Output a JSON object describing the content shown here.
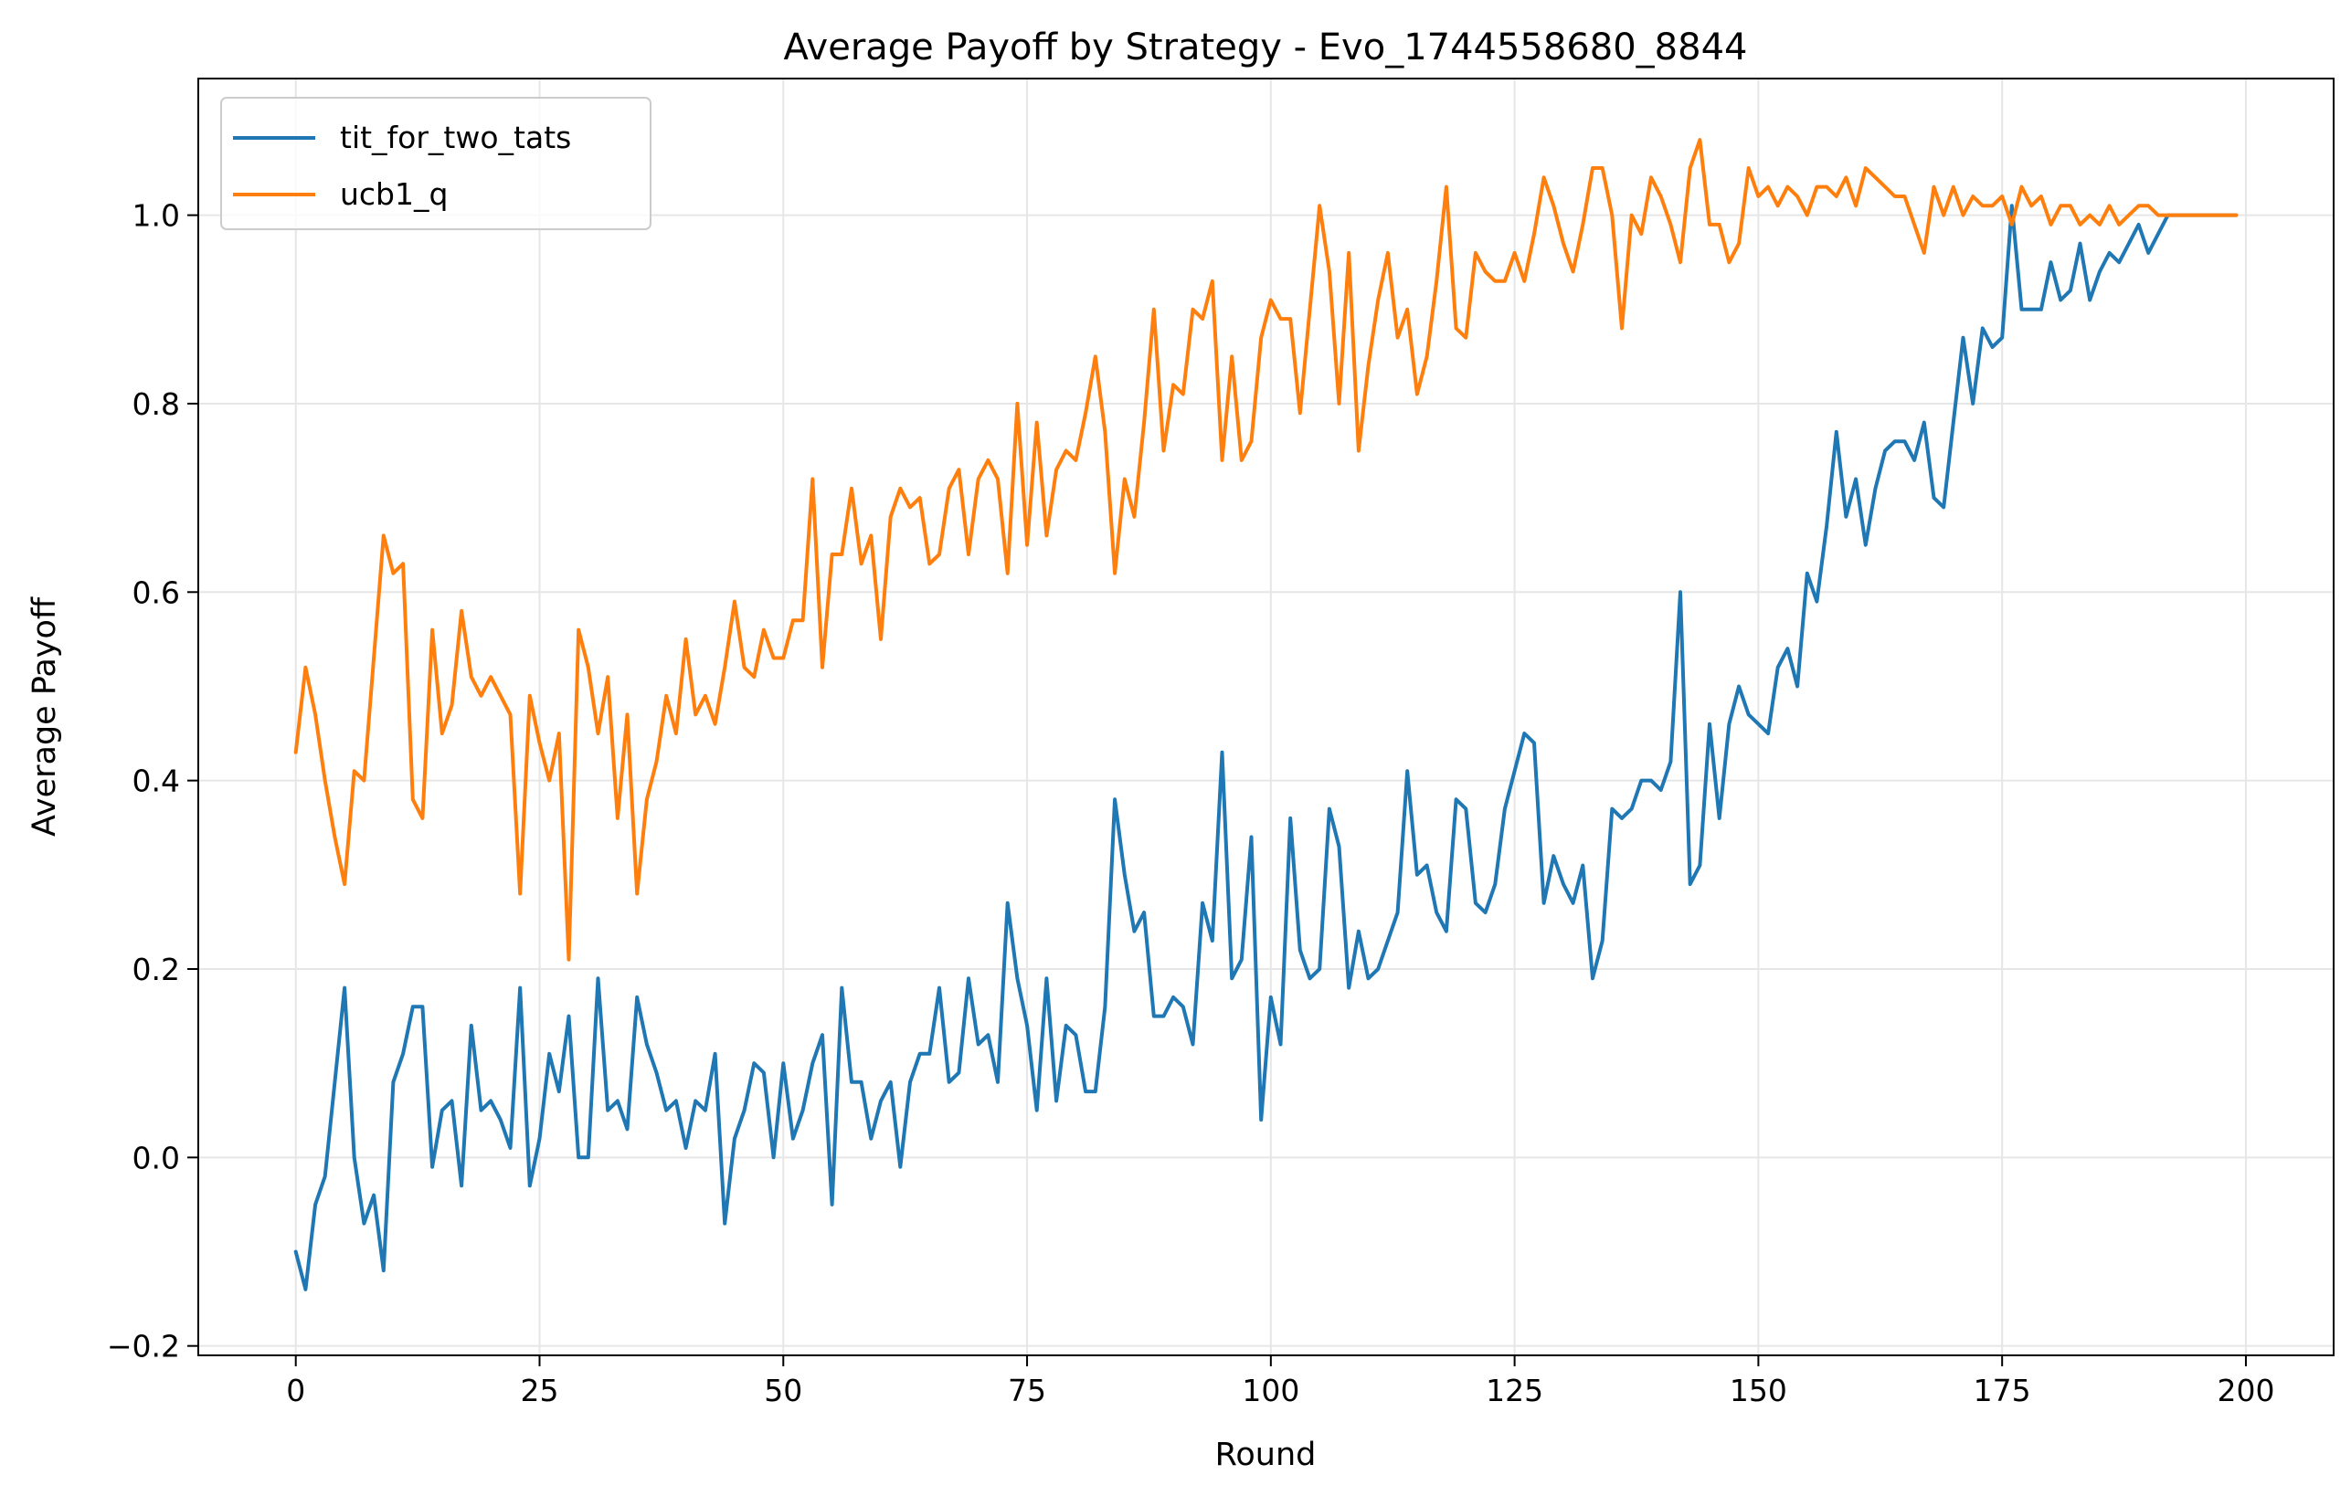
{
  "chart_data": {
    "type": "line",
    "title": "Average Payoff by Strategy - Evo_1744558680_8844",
    "xlabel": "Round",
    "ylabel": "Average Payoff",
    "xlim": [
      -10,
      209
    ],
    "ylim": [
      -0.21,
      1.145
    ],
    "xticks": [
      0,
      25,
      50,
      75,
      100,
      125,
      150,
      175,
      200
    ],
    "xtick_labels": [
      "0",
      "25",
      "50",
      "75",
      "100",
      "125",
      "150",
      "175",
      "200"
    ],
    "yticks": [
      -0.2,
      0.0,
      0.2,
      0.4,
      0.6,
      0.8,
      1.0
    ],
    "ytick_labels": [
      "−0.2",
      "0.0",
      "0.2",
      "0.4",
      "0.6",
      "0.8",
      "1.0"
    ],
    "grid": true,
    "legend_position": "upper-left",
    "series": [
      {
        "name": "tit_for_two_tats",
        "color": "#1f77b4",
        "values": [
          -0.1,
          -0.14,
          -0.05,
          -0.02,
          0.08,
          0.18,
          0.0,
          -0.07,
          -0.04,
          -0.12,
          0.08,
          0.11,
          0.16,
          0.16,
          -0.01,
          0.05,
          0.06,
          -0.03,
          0.14,
          0.05,
          0.06,
          0.04,
          0.01,
          0.18,
          -0.03,
          0.02,
          0.11,
          0.07,
          0.15,
          0.0,
          0.0,
          0.19,
          0.05,
          0.06,
          0.03,
          0.17,
          0.12,
          0.09,
          0.05,
          0.06,
          0.01,
          0.06,
          0.05,
          0.11,
          -0.07,
          0.02,
          0.05,
          0.1,
          0.09,
          0.0,
          0.1,
          0.02,
          0.05,
          0.1,
          0.13,
          -0.05,
          0.18,
          0.08,
          0.08,
          0.02,
          0.06,
          0.08,
          -0.01,
          0.08,
          0.11,
          0.11,
          0.18,
          0.08,
          0.09,
          0.19,
          0.12,
          0.13,
          0.08,
          0.27,
          0.19,
          0.14,
          0.05,
          0.19,
          0.06,
          0.14,
          0.13,
          0.07,
          0.07,
          0.16,
          0.38,
          0.3,
          0.24,
          0.26,
          0.15,
          0.15,
          0.17,
          0.16,
          0.12,
          0.27,
          0.23,
          0.43,
          0.19,
          0.21,
          0.34,
          0.04,
          0.17,
          0.12,
          0.36,
          0.22,
          0.19,
          0.2,
          0.37,
          0.33,
          0.18,
          0.24,
          0.19,
          0.2,
          0.23,
          0.26,
          0.41,
          0.3,
          0.31,
          0.26,
          0.24,
          0.38,
          0.37,
          0.27,
          0.26,
          0.29,
          0.37,
          0.41,
          0.45,
          0.44,
          0.27,
          0.32,
          0.29,
          0.27,
          0.31,
          0.19,
          0.23,
          0.37,
          0.36,
          0.37,
          0.4,
          0.4,
          0.39,
          0.42,
          0.6,
          0.29,
          0.31,
          0.46,
          0.36,
          0.46,
          0.5,
          0.47,
          0.46,
          0.45,
          0.52,
          0.54,
          0.5,
          0.62,
          0.59,
          0.67,
          0.77,
          0.68,
          0.72,
          0.65,
          0.71,
          0.75,
          0.76,
          0.76,
          0.74,
          0.78,
          0.7,
          0.69,
          0.78,
          0.87,
          0.8,
          0.88,
          0.86,
          0.87,
          1.01,
          0.9,
          0.9,
          0.9,
          0.95,
          0.91,
          0.92,
          0.97,
          0.91,
          0.94,
          0.96,
          0.95,
          0.97,
          0.99,
          0.96,
          0.98,
          1.0,
          1.0,
          1.0,
          1.0,
          1.0,
          1.0,
          1.0,
          1.0
        ]
      },
      {
        "name": "ucb1_q",
        "color": "#ff7f0e",
        "values": [
          0.43,
          0.52,
          0.47,
          0.4,
          0.34,
          0.29,
          0.41,
          0.4,
          0.53,
          0.66,
          0.62,
          0.63,
          0.38,
          0.36,
          0.56,
          0.45,
          0.48,
          0.58,
          0.51,
          0.49,
          0.51,
          0.49,
          0.47,
          0.28,
          0.49,
          0.44,
          0.4,
          0.45,
          0.21,
          0.56,
          0.52,
          0.45,
          0.51,
          0.36,
          0.47,
          0.28,
          0.38,
          0.42,
          0.49,
          0.45,
          0.55,
          0.47,
          0.49,
          0.46,
          0.52,
          0.59,
          0.52,
          0.51,
          0.56,
          0.53,
          0.53,
          0.57,
          0.57,
          0.72,
          0.52,
          0.64,
          0.64,
          0.71,
          0.63,
          0.66,
          0.55,
          0.68,
          0.71,
          0.69,
          0.7,
          0.63,
          0.64,
          0.71,
          0.73,
          0.64,
          0.72,
          0.74,
          0.72,
          0.62,
          0.8,
          0.65,
          0.78,
          0.66,
          0.73,
          0.75,
          0.74,
          0.79,
          0.85,
          0.77,
          0.62,
          0.72,
          0.68,
          0.78,
          0.9,
          0.75,
          0.82,
          0.81,
          0.9,
          0.89,
          0.93,
          0.74,
          0.85,
          0.74,
          0.76,
          0.87,
          0.91,
          0.89,
          0.89,
          0.79,
          0.9,
          1.01,
          0.94,
          0.8,
          0.96,
          0.75,
          0.84,
          0.91,
          0.96,
          0.87,
          0.9,
          0.81,
          0.85,
          0.93,
          1.03,
          0.88,
          0.87,
          0.96,
          0.94,
          0.93,
          0.93,
          0.96,
          0.93,
          0.98,
          1.04,
          1.01,
          0.97,
          0.94,
          0.99,
          1.05,
          1.05,
          1.0,
          0.88,
          1.0,
          0.98,
          1.04,
          1.02,
          0.99,
          0.95,
          1.05,
          1.08,
          0.99,
          0.99,
          0.95,
          0.97,
          1.05,
          1.02,
          1.03,
          1.01,
          1.03,
          1.02,
          1.0,
          1.03,
          1.03,
          1.02,
          1.04,
          1.01,
          1.05,
          1.04,
          1.03,
          1.02,
          1.02,
          0.99,
          0.96,
          1.03,
          1.0,
          1.03,
          1.0,
          1.02,
          1.01,
          1.01,
          1.02,
          0.99,
          1.03,
          1.01,
          1.02,
          0.99,
          1.01,
          1.01,
          0.99,
          1.0,
          0.99,
          1.01,
          0.99,
          1.0,
          1.01,
          1.01,
          1.0,
          1.0,
          1.0,
          1.0,
          1.0,
          1.0,
          1.0,
          1.0,
          1.0
        ]
      }
    ]
  }
}
